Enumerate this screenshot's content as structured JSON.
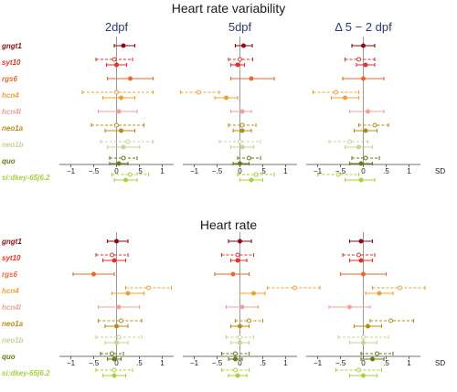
{
  "chart_data": {
    "type": "forest",
    "panels": [
      {
        "title": "Heart rate variability",
        "xunit": "SD",
        "xlim": [
          -1.25,
          1.25
        ],
        "xticks": [
          -1,
          -0.5,
          0,
          0.5,
          1
        ],
        "xtick_labels": [
          "−1",
          "−.5",
          "0",
          ".5",
          "1"
        ],
        "columns": [
          "2dpf",
          "5dpf",
          "Δ 5 − 2 dpf"
        ],
        "rows": [
          {
            "gene": "gngt1",
            "color": "#8b0a14",
            "points": [
              [
                [
                  0.15,
                  -0.05,
                  0.4,
                  "solid",
                  "filled"
                ]
              ],
              [
                [
                  0.08,
                  -0.1,
                  0.27,
                  "solid",
                  "filled"
                ]
              ],
              [
                [
                  0.0,
                  -0.25,
                  0.25,
                  "solid",
                  "filled"
                ]
              ]
            ]
          },
          {
            "gene": "syt10",
            "color": "#e0322a",
            "points": [
              [
                [
                  -0.05,
                  -0.45,
                  0.35,
                  "dashed",
                  "open"
                ],
                [
                  0.0,
                  -0.22,
                  0.22,
                  "solid",
                  "filled"
                ]
              ],
              [
                [
                  0.0,
                  -0.25,
                  0.28,
                  "dashed",
                  "open"
                ],
                [
                  -0.05,
                  -0.2,
                  0.1,
                  "solid",
                  "filled"
                ]
              ],
              [
                [
                  -0.1,
                  -0.4,
                  0.25,
                  "dashed",
                  "open"
                ],
                [
                  0.05,
                  -0.15,
                  0.25,
                  "solid",
                  "filled"
                ]
              ]
            ]
          },
          {
            "gene": "rgs6",
            "color": "#e8682a",
            "points": [
              [
                [
                  0.3,
                  -0.2,
                  0.8,
                  "solid",
                  "filled"
                ]
              ],
              [
                [
                  0.25,
                  -0.2,
                  0.75,
                  "solid",
                  "filled"
                ]
              ],
              [
                [
                  0.0,
                  -0.45,
                  0.45,
                  "solid",
                  "filled"
                ]
              ]
            ]
          },
          {
            "gene": "hcn4",
            "color": "#f0a030",
            "points": [
              [
                [
                  0.0,
                  -0.75,
                  0.8,
                  "dashed",
                  "open"
                ],
                [
                  0.1,
                  -0.3,
                  0.4,
                  "solid",
                  "filled"
                ]
              ],
              [
                [
                  -0.9,
                  -1.3,
                  -0.45,
                  "dashed",
                  "open"
                ],
                [
                  -0.3,
                  -0.55,
                  -0.05,
                  "solid",
                  "filled"
                ]
              ],
              [
                [
                  -0.6,
                  -1.1,
                  -0.1,
                  "dashed",
                  "open"
                ],
                [
                  -0.4,
                  -0.7,
                  -0.1,
                  "solid",
                  "filled"
                ]
              ]
            ]
          },
          {
            "gene": "hcn4l",
            "color": "#f2a09a",
            "points": [
              [
                [
                  0.05,
                  -0.4,
                  0.45,
                  "solid",
                  "filled"
                ]
              ],
              [
                [
                  0.05,
                  -0.2,
                  0.25,
                  "solid",
                  "filled"
                ]
              ],
              [
                [
                  0.1,
                  -0.3,
                  0.45,
                  "solid",
                  "filled"
                ]
              ]
            ]
          },
          {
            "gene": "neo1a",
            "color": "#b88c14",
            "points": [
              [
                [
                  0.0,
                  -0.55,
                  0.6,
                  "dashed",
                  "open"
                ],
                [
                  0.1,
                  -0.25,
                  0.4,
                  "solid",
                  "filled"
                ]
              ],
              [
                [
                  0.05,
                  -0.25,
                  0.35,
                  "dashed",
                  "open"
                ],
                [
                  0.05,
                  -0.15,
                  0.25,
                  "solid",
                  "filled"
                ]
              ],
              [
                [
                  0.25,
                  -0.1,
                  0.55,
                  "dashed",
                  "open"
                ],
                [
                  0.05,
                  -0.2,
                  0.3,
                  "solid",
                  "filled"
                ]
              ]
            ]
          },
          {
            "gene": "neo1b",
            "color": "#c6d496",
            "points": [
              [
                [
                  0.25,
                  -0.35,
                  0.8,
                  "dashed",
                  "open"
                ],
                [
                  0.15,
                  -0.2,
                  0.5,
                  "solid",
                  "filled"
                ]
              ],
              [
                [
                  0.0,
                  -0.45,
                  0.45,
                  "dashed",
                  "open"
                ],
                [
                  0.05,
                  -0.2,
                  0.3,
                  "solid",
                  "filled"
                ]
              ],
              [
                [
                  -0.3,
                  -0.75,
                  0.1,
                  "dashed",
                  "open"
                ],
                [
                  -0.1,
                  -0.4,
                  0.2,
                  "solid",
                  "filled"
                ]
              ]
            ]
          },
          {
            "gene": "quo",
            "color": "#6a7a14",
            "points": [
              [
                [
                  0.15,
                  -0.15,
                  0.45,
                  "dashed",
                  "open"
                ],
                [
                  0.05,
                  -0.15,
                  0.25,
                  "solid",
                  "filled"
                ]
              ],
              [
                [
                  0.2,
                  -0.05,
                  0.45,
                  "dashed",
                  "open"
                ],
                [
                  0.0,
                  -0.15,
                  0.2,
                  "solid",
                  "filled"
                ]
              ],
              [
                [
                  0.05,
                  -0.25,
                  0.35,
                  "dashed",
                  "open"
                ],
                [
                  -0.05,
                  -0.3,
                  0.2,
                  "solid",
                  "filled"
                ]
              ]
            ]
          },
          {
            "gene": "si:dkey-65j6.2",
            "color": "#a8d23a",
            "points": [
              [
                [
                  0.3,
                  -0.1,
                  0.7,
                  "dashed",
                  "open"
                ],
                [
                  0.2,
                  -0.05,
                  0.45,
                  "solid",
                  "filled"
                ]
              ],
              [
                [
                  0.35,
                  -0.05,
                  0.75,
                  "dashed",
                  "open"
                ],
                [
                  0.25,
                  0.0,
                  0.5,
                  "solid",
                  "filled"
                ]
              ],
              [
                [
                  -0.55,
                  -1.0,
                  -0.1,
                  "dashed",
                  "open"
                ],
                [
                  -0.05,
                  -0.4,
                  0.25,
                  "solid",
                  "filled"
                ]
              ]
            ]
          }
        ]
      },
      {
        "title": "Heart rate",
        "xunit": "SD",
        "xlim": [
          -1.25,
          1.25
        ],
        "xticks": [
          -1,
          -0.5,
          0,
          0.5,
          1
        ],
        "xtick_labels": [
          "−1",
          "−.5",
          "0",
          ".5",
          "1"
        ],
        "columns": [
          "",
          "",
          ""
        ],
        "rows": [
          {
            "gene": "gngt1",
            "color": "#8b0a14",
            "points": [
              [
                [
                  0.0,
                  -0.2,
                  0.25,
                  "solid",
                  "filled"
                ]
              ],
              [
                [
                  0.0,
                  -0.25,
                  0.25,
                  "solid",
                  "filled"
                ]
              ],
              [
                [
                  -0.05,
                  -0.3,
                  0.2,
                  "solid",
                  "filled"
                ]
              ]
            ]
          },
          {
            "gene": "syt10",
            "color": "#e0322a",
            "points": [
              [
                [
                  -0.1,
                  -0.45,
                  0.25,
                  "dashed",
                  "open"
                ],
                [
                  -0.05,
                  -0.3,
                  0.2,
                  "solid",
                  "filled"
                ]
              ],
              [
                [
                  -0.05,
                  -0.4,
                  0.3,
                  "dashed",
                  "open"
                ],
                [
                  -0.05,
                  -0.2,
                  0.15,
                  "solid",
                  "filled"
                ]
              ],
              [
                [
                  -0.1,
                  -0.45,
                  0.25,
                  "dashed",
                  "open"
                ],
                [
                  -0.05,
                  -0.3,
                  0.2,
                  "solid",
                  "filled"
                ]
              ]
            ]
          },
          {
            "gene": "rgs6",
            "color": "#e8682a",
            "points": [
              [
                [
                  -0.5,
                  -0.95,
                  -0.05,
                  "solid",
                  "filled"
                ]
              ],
              [
                [
                  -0.15,
                  -0.55,
                  0.2,
                  "solid",
                  "filled"
                ]
              ],
              [
                [
                  0.0,
                  -0.5,
                  0.5,
                  "solid",
                  "filled"
                ]
              ]
            ]
          },
          {
            "gene": "hcn4",
            "color": "#f0a030",
            "points": [
              [
                [
                  0.7,
                  0.2,
                  1.2,
                  "dashed",
                  "open"
                ],
                [
                  0.25,
                  -0.1,
                  0.6,
                  "solid",
                  "filled"
                ]
              ],
              [
                [
                  1.2,
                  0.6,
                  1.75,
                  "dashed",
                  "open"
                ],
                [
                  0.3,
                  0.0,
                  0.55,
                  "solid",
                  "filled"
                ]
              ],
              [
                [
                  0.8,
                  0.2,
                  1.35,
                  "dashed",
                  "open"
                ],
                [
                  0.35,
                  0.05,
                  0.65,
                  "solid",
                  "filled"
                ]
              ]
            ]
          },
          {
            "gene": "hcn4l",
            "color": "#f2a09a",
            "points": [
              [
                [
                  0.05,
                  -0.4,
                  0.5,
                  "solid",
                  "filled"
                ]
              ],
              [
                [
                  0.05,
                  -0.3,
                  0.4,
                  "solid",
                  "filled"
                ]
              ],
              [
                [
                  -0.3,
                  -0.75,
                  0.15,
                  "solid",
                  "filled"
                ]
              ]
            ]
          },
          {
            "gene": "neo1a",
            "color": "#b88c14",
            "points": [
              [
                [
                  0.1,
                  -0.4,
                  0.55,
                  "dashed",
                  "open"
                ],
                [
                  0.0,
                  -0.25,
                  0.25,
                  "solid",
                  "filled"
                ]
              ],
              [
                [
                  0.2,
                  -0.1,
                  0.5,
                  "dashed",
                  "open"
                ],
                [
                  0.0,
                  -0.2,
                  0.2,
                  "solid",
                  "filled"
                ]
              ],
              [
                [
                  0.6,
                  0.15,
                  1.1,
                  "dashed",
                  "open"
                ],
                [
                  0.1,
                  -0.2,
                  0.4,
                  "solid",
                  "filled"
                ]
              ]
            ]
          },
          {
            "gene": "neo1b",
            "color": "#c6d496",
            "points": [
              [
                [
                  0.05,
                  -0.45,
                  0.55,
                  "dashed",
                  "open"
                ],
                [
                  0.0,
                  -0.25,
                  0.25,
                  "solid",
                  "filled"
                ]
              ],
              [
                [
                  0.0,
                  -0.3,
                  0.3,
                  "dashed",
                  "open"
                ],
                [
                  0.0,
                  -0.2,
                  0.2,
                  "solid",
                  "filled"
                ]
              ],
              [
                [
                  0.0,
                  -0.55,
                  0.55,
                  "dashed",
                  "open"
                ],
                [
                  0.0,
                  -0.3,
                  0.3,
                  "solid",
                  "filled"
                ]
              ]
            ]
          },
          {
            "gene": "quo",
            "color": "#6a7a14",
            "points": [
              [
                [
                  -0.1,
                  -0.35,
                  0.15,
                  "dashed",
                  "open"
                ],
                [
                  -0.05,
                  -0.2,
                  0.1,
                  "solid",
                  "filled"
                ]
              ],
              [
                [
                  -0.1,
                  -0.4,
                  0.2,
                  "dashed",
                  "open"
                ],
                [
                  -0.1,
                  -0.25,
                  0.05,
                  "solid",
                  "filled"
                ]
              ],
              [
                [
                  0.3,
                  -0.05,
                  0.65,
                  "dashed",
                  "open"
                ],
                [
                  0.2,
                  -0.05,
                  0.45,
                  "solid",
                  "filled"
                ]
              ]
            ]
          },
          {
            "gene": "si:dkey-65j6.2",
            "color": "#a8d23a",
            "points": [
              [
                [
                  -0.05,
                  -0.45,
                  0.35,
                  "dashed",
                  "open"
                ],
                [
                  -0.05,
                  -0.3,
                  0.2,
                  "solid",
                  "filled"
                ]
              ],
              [
                [
                  -0.1,
                  -0.4,
                  0.2,
                  "dashed",
                  "open"
                ],
                [
                  -0.05,
                  -0.25,
                  0.15,
                  "solid",
                  "filled"
                ]
              ],
              [
                [
                  -0.1,
                  -0.6,
                  0.4,
                  "dashed",
                  "open"
                ],
                [
                  0.0,
                  -0.3,
                  0.3,
                  "solid",
                  "filled"
                ]
              ]
            ]
          }
        ]
      }
    ]
  }
}
